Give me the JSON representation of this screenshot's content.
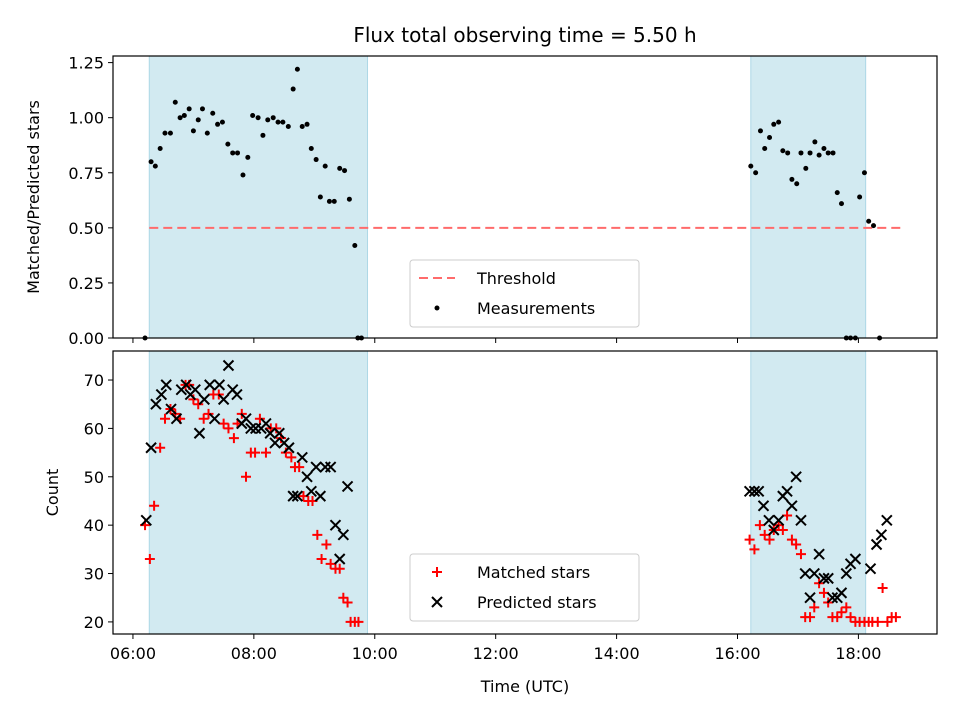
{
  "title": "Flux total observing time = 5.50 h",
  "colors": {
    "shade": "#add8e6",
    "threshold": "#ff6b6b",
    "matched": "#ff0000",
    "predicted": "#000000",
    "measurement": "#000000"
  },
  "chart_data": [
    {
      "type": "scatter",
      "panel": "top",
      "title": "Flux total observing time = 5.50 h",
      "xlabel": "",
      "ylabel": "Matched/Predicted stars",
      "x_unit": "hours UTC",
      "xlim": [
        5.67,
        19.3
      ],
      "ylim": [
        0,
        1.28
      ],
      "yticks": [
        0.0,
        0.25,
        0.5,
        0.75,
        1.0,
        1.25
      ],
      "ytick_labels": [
        "0.00",
        "0.25",
        "0.50",
        "0.75",
        "1.00",
        "1.25"
      ],
      "xticks": [
        6,
        8,
        10,
        12,
        14,
        16,
        18
      ],
      "grid": false,
      "legend_position": "lower center",
      "shaded_intervals": [
        [
          6.27,
          9.88
        ],
        [
          16.22,
          18.12
        ]
      ],
      "threshold": {
        "name": "Threshold",
        "y": 0.5,
        "x_range": [
          6.27,
          18.75
        ]
      },
      "series": [
        {
          "name": "Measurements",
          "points": [
            [
              6.2,
              0.0
            ],
            [
              6.3,
              0.8
            ],
            [
              6.37,
              0.78
            ],
            [
              6.45,
              0.86
            ],
            [
              6.53,
              0.93
            ],
            [
              6.62,
              0.93
            ],
            [
              6.7,
              1.07
            ],
            [
              6.78,
              1.0
            ],
            [
              6.85,
              1.01
            ],
            [
              6.93,
              1.04
            ],
            [
              7.0,
              0.94
            ],
            [
              7.08,
              0.99
            ],
            [
              7.15,
              1.04
            ],
            [
              7.23,
              0.93
            ],
            [
              7.32,
              1.02
            ],
            [
              7.4,
              0.97
            ],
            [
              7.48,
              0.98
            ],
            [
              7.57,
              0.88
            ],
            [
              7.65,
              0.84
            ],
            [
              7.73,
              0.84
            ],
            [
              7.82,
              0.74
            ],
            [
              7.9,
              0.82
            ],
            [
              7.98,
              1.01
            ],
            [
              8.07,
              1.0
            ],
            [
              8.15,
              0.92
            ],
            [
              8.23,
              0.99
            ],
            [
              8.32,
              1.0
            ],
            [
              8.4,
              0.98
            ],
            [
              8.48,
              0.98
            ],
            [
              8.57,
              0.96
            ],
            [
              8.65,
              1.13
            ],
            [
              8.72,
              1.22
            ],
            [
              8.8,
              0.96
            ],
            [
              8.88,
              0.97
            ],
            [
              8.95,
              0.86
            ],
            [
              9.03,
              0.81
            ],
            [
              9.1,
              0.64
            ],
            [
              9.18,
              0.78
            ],
            [
              9.25,
              0.62
            ],
            [
              9.33,
              0.62
            ],
            [
              9.42,
              0.77
            ],
            [
              9.5,
              0.76
            ],
            [
              9.58,
              0.63
            ],
            [
              9.67,
              0.42
            ],
            [
              9.72,
              0.0
            ],
            [
              9.78,
              0.0
            ],
            [
              16.22,
              0.78
            ],
            [
              16.3,
              0.75
            ],
            [
              16.38,
              0.94
            ],
            [
              16.45,
              0.86
            ],
            [
              16.53,
              0.91
            ],
            [
              16.6,
              0.97
            ],
            [
              16.68,
              0.98
            ],
            [
              16.75,
              0.85
            ],
            [
              16.83,
              0.84
            ],
            [
              16.9,
              0.72
            ],
            [
              16.98,
              0.7
            ],
            [
              17.05,
              0.84
            ],
            [
              17.13,
              0.77
            ],
            [
              17.2,
              0.84
            ],
            [
              17.28,
              0.89
            ],
            [
              17.35,
              0.83
            ],
            [
              17.43,
              0.86
            ],
            [
              17.5,
              0.84
            ],
            [
              17.58,
              0.84
            ],
            [
              17.65,
              0.66
            ],
            [
              17.72,
              0.61
            ],
            [
              17.8,
              0.0
            ],
            [
              17.87,
              0.0
            ],
            [
              17.95,
              0.0
            ],
            [
              18.02,
              0.64
            ],
            [
              18.1,
              0.75
            ],
            [
              18.17,
              0.53
            ],
            [
              18.25,
              0.51
            ],
            [
              18.35,
              0.0
            ]
          ]
        }
      ]
    },
    {
      "type": "scatter",
      "panel": "bottom",
      "title": "",
      "xlabel": "Time (UTC)",
      "ylabel": "Count",
      "x_unit": "hours UTC",
      "xlim": [
        5.67,
        19.3
      ],
      "ylim": [
        17.5,
        76
      ],
      "yticks": [
        20,
        30,
        40,
        50,
        60,
        70
      ],
      "xticks": [
        6,
        8,
        10,
        12,
        14,
        16,
        18
      ],
      "xtick_labels": [
        "06:00",
        "08:00",
        "10:00",
        "12:00",
        "14:00",
        "16:00",
        "18:00"
      ],
      "grid": false,
      "legend_position": "lower center",
      "shaded_intervals": [
        [
          6.27,
          9.88
        ],
        [
          16.22,
          18.12
        ]
      ],
      "series": [
        {
          "name": "Matched stars",
          "marker": "+",
          "points": [
            [
              6.2,
              40
            ],
            [
              6.28,
              33
            ],
            [
              6.35,
              44
            ],
            [
              6.45,
              56
            ],
            [
              6.53,
              62
            ],
            [
              6.62,
              64
            ],
            [
              6.7,
              63
            ],
            [
              6.78,
              62
            ],
            [
              6.87,
              69
            ],
            [
              6.93,
              69
            ],
            [
              7.0,
              66
            ],
            [
              7.08,
              65
            ],
            [
              7.17,
              62
            ],
            [
              7.25,
              63
            ],
            [
              7.33,
              67
            ],
            [
              7.42,
              67
            ],
            [
              7.5,
              61
            ],
            [
              7.58,
              60
            ],
            [
              7.67,
              58
            ],
            [
              7.73,
              61
            ],
            [
              7.8,
              63
            ],
            [
              7.87,
              50
            ],
            [
              7.95,
              55
            ],
            [
              8.02,
              55
            ],
            [
              8.1,
              62
            ],
            [
              8.2,
              55
            ],
            [
              8.28,
              60
            ],
            [
              8.37,
              60
            ],
            [
              8.45,
              58
            ],
            [
              8.53,
              55
            ],
            [
              8.62,
              54
            ],
            [
              8.68,
              52
            ],
            [
              8.75,
              52
            ],
            [
              8.82,
              46
            ],
            [
              8.9,
              45
            ],
            [
              8.97,
              45
            ],
            [
              9.05,
              38
            ],
            [
              9.12,
              33
            ],
            [
              9.2,
              36
            ],
            [
              9.27,
              32
            ],
            [
              9.35,
              31
            ],
            [
              9.42,
              31
            ],
            [
              9.48,
              25
            ],
            [
              9.55,
              24
            ],
            [
              9.6,
              20
            ],
            [
              9.67,
              20
            ],
            [
              9.73,
              20
            ],
            [
              16.2,
              37
            ],
            [
              16.28,
              35
            ],
            [
              16.37,
              40
            ],
            [
              16.45,
              38
            ],
            [
              16.53,
              37
            ],
            [
              16.6,
              39
            ],
            [
              16.68,
              40
            ],
            [
              16.75,
              39
            ],
            [
              16.82,
              42
            ],
            [
              16.9,
              37
            ],
            [
              16.97,
              36
            ],
            [
              17.05,
              34
            ],
            [
              17.12,
              21
            ],
            [
              17.2,
              21
            ],
            [
              17.27,
              23
            ],
            [
              17.35,
              28
            ],
            [
              17.43,
              26
            ],
            [
              17.5,
              24
            ],
            [
              17.57,
              21
            ],
            [
              17.65,
              21
            ],
            [
              17.72,
              22
            ],
            [
              17.8,
              23
            ],
            [
              17.87,
              21
            ],
            [
              17.95,
              20
            ],
            [
              18.02,
              20
            ],
            [
              18.1,
              20
            ],
            [
              18.17,
              20
            ],
            [
              18.23,
              20
            ],
            [
              18.32,
              20
            ],
            [
              18.4,
              27
            ],
            [
              18.48,
              20
            ],
            [
              18.55,
              21
            ],
            [
              18.62,
              21
            ]
          ]
        },
        {
          "name": "Predicted stars",
          "marker": "x",
          "points": [
            [
              6.22,
              41
            ],
            [
              6.3,
              56
            ],
            [
              6.38,
              65
            ],
            [
              6.47,
              67
            ],
            [
              6.55,
              69
            ],
            [
              6.63,
              64
            ],
            [
              6.72,
              62
            ],
            [
              6.8,
              68
            ],
            [
              6.88,
              69
            ],
            [
              6.95,
              67
            ],
            [
              7.03,
              68
            ],
            [
              7.1,
              59
            ],
            [
              7.18,
              66
            ],
            [
              7.27,
              69
            ],
            [
              7.35,
              62
            ],
            [
              7.43,
              69
            ],
            [
              7.5,
              66
            ],
            [
              7.58,
              73
            ],
            [
              7.65,
              68
            ],
            [
              7.72,
              67
            ],
            [
              7.8,
              61
            ],
            [
              7.87,
              62
            ],
            [
              7.95,
              60
            ],
            [
              8.03,
              60
            ],
            [
              8.12,
              60
            ],
            [
              8.2,
              61
            ],
            [
              8.27,
              59
            ],
            [
              8.35,
              57
            ],
            [
              8.42,
              59
            ],
            [
              8.5,
              57
            ],
            [
              8.58,
              56
            ],
            [
              8.65,
              46
            ],
            [
              8.72,
              46
            ],
            [
              8.8,
              54
            ],
            [
              8.88,
              50
            ],
            [
              8.95,
              47
            ],
            [
              9.03,
              52
            ],
            [
              9.1,
              46
            ],
            [
              9.18,
              52
            ],
            [
              9.27,
              52
            ],
            [
              9.35,
              40
            ],
            [
              9.42,
              33
            ],
            [
              9.48,
              38
            ],
            [
              9.55,
              48
            ],
            [
              16.2,
              47
            ],
            [
              16.28,
              47
            ],
            [
              16.35,
              47
            ],
            [
              16.43,
              44
            ],
            [
              16.52,
              41
            ],
            [
              16.6,
              39
            ],
            [
              16.68,
              41
            ],
            [
              16.75,
              46
            ],
            [
              16.82,
              47
            ],
            [
              16.9,
              44
            ],
            [
              16.97,
              50
            ],
            [
              17.05,
              41
            ],
            [
              17.12,
              30
            ],
            [
              17.2,
              25
            ],
            [
              17.27,
              30
            ],
            [
              17.35,
              34
            ],
            [
              17.43,
              29
            ],
            [
              17.5,
              29
            ],
            [
              17.57,
              25
            ],
            [
              17.65,
              25
            ],
            [
              17.72,
              26
            ],
            [
              17.8,
              30
            ],
            [
              17.87,
              32
            ],
            [
              17.95,
              33
            ],
            [
              18.2,
              31
            ],
            [
              18.3,
              36
            ],
            [
              18.38,
              38
            ],
            [
              18.47,
              41
            ]
          ]
        }
      ]
    }
  ]
}
